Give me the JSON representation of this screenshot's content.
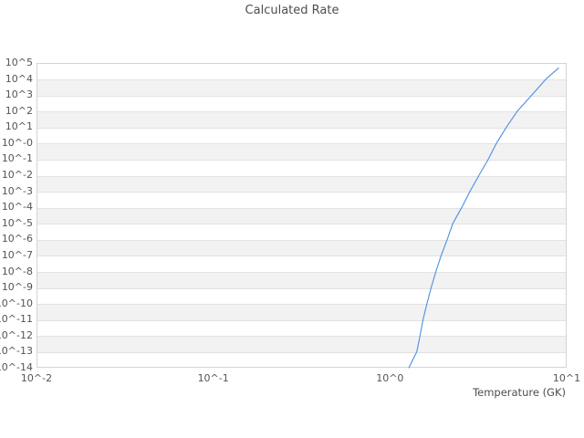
{
  "title": "Calculated Rate",
  "colors": {
    "line": "#4a90e2",
    "band": "#f2f2f2",
    "gridline": "#e2e2e2",
    "plot_border": "#d4d4d4",
    "title_text": "#4d4d4d",
    "tick_text": "#545454",
    "background": "#ffffff"
  },
  "chart_data": {
    "type": "line",
    "title": "Calculated Rate",
    "xlabel": "Temperature (GK)",
    "ylabel": "",
    "x_scale": "log",
    "y_scale": "log",
    "xlim": [
      0.01,
      10
    ],
    "ylim": [
      1e-14,
      100000.0
    ],
    "x_decades": 3,
    "y_decades": 19,
    "grid": "horizontal-bands-alternating",
    "legend": "none",
    "x_tick_labels": [
      "10^-2",
      "10^-1",
      "10^0",
      "10^1"
    ],
    "y_tick_labels": [
      "10^5",
      "10^4",
      "10^3",
      "10^2",
      "10^1",
      "10^-0",
      "10^-1",
      "10^-2",
      "10^-3",
      "10^-4",
      "10^-5",
      "10^-6",
      "10^-7",
      "10^-8",
      "10^-9",
      "10^-10",
      "10^-11",
      "10^-12",
      "10^-13",
      "10^-14"
    ],
    "series": [
      {
        "name": "calculated-rate",
        "color": "#4a90e2",
        "points_T_log10rate": [
          [
            1.28,
            -14.0
          ],
          [
            1.42,
            -13.0
          ],
          [
            1.48,
            -12.0
          ],
          [
            1.54,
            -11.0
          ],
          [
            1.62,
            -10.0
          ],
          [
            1.71,
            -9.0
          ],
          [
            1.82,
            -8.0
          ],
          [
            1.95,
            -7.0
          ],
          [
            2.11,
            -6.0
          ],
          [
            2.27,
            -5.0
          ],
          [
            2.55,
            -4.0
          ],
          [
            2.84,
            -3.0
          ],
          [
            3.19,
            -2.0
          ],
          [
            3.6,
            -1.0
          ],
          [
            4.01,
            0.0
          ],
          [
            4.56,
            1.0
          ],
          [
            5.26,
            2.0
          ],
          [
            6.34,
            3.0
          ],
          [
            7.64,
            4.0
          ],
          [
            9.0,
            4.68
          ]
        ]
      }
    ]
  }
}
